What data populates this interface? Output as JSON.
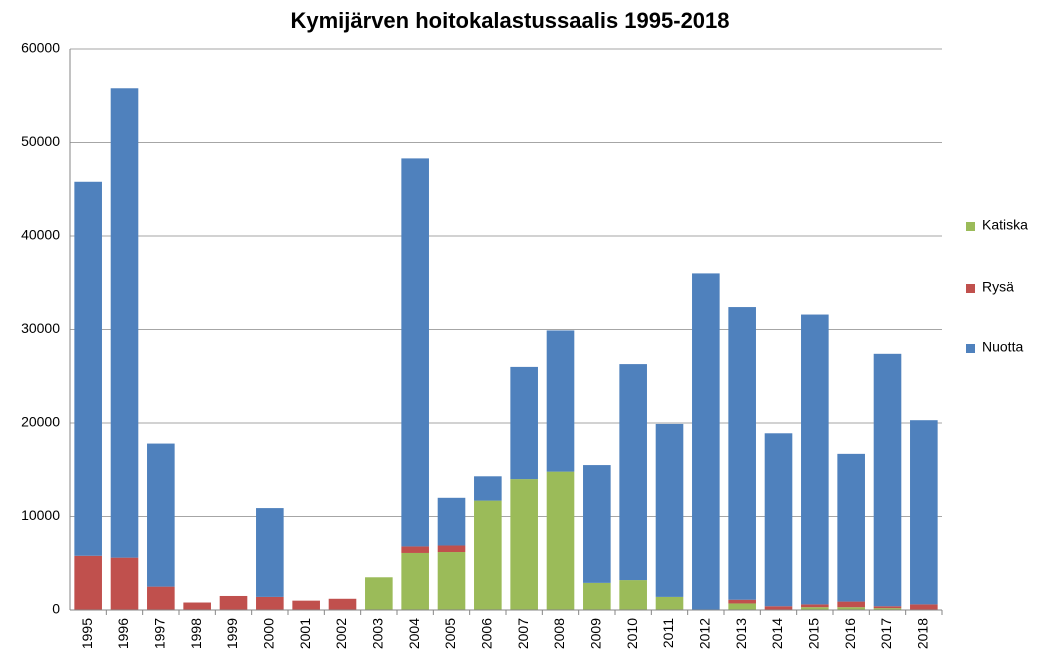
{
  "chart_data": {
    "type": "stacked_bar",
    "title": "Kymijärven hoitokalastussaalis 1995-2018",
    "categories": [
      "1995",
      "1996",
      "1997",
      "1998",
      "1999",
      "2000",
      "2001",
      "2002",
      "2003",
      "2004",
      "2005",
      "2006",
      "2007",
      "2008",
      "2009",
      "2010",
      "2011",
      "2012",
      "2013",
      "2014",
      "2015",
      "2016",
      "2017",
      "2018"
    ],
    "series": [
      {
        "name": "Katiska",
        "color": "#9bbb59",
        "values": [
          0,
          0,
          0,
          0,
          0,
          0,
          0,
          0,
          3500,
          6100,
          6200,
          11700,
          14000,
          14800,
          2900,
          3200,
          1400,
          0,
          700,
          0,
          300,
          300,
          200,
          0
        ]
      },
      {
        "name": "Rysä",
        "color": "#c0504d",
        "values": [
          5800,
          5600,
          2500,
          800,
          1500,
          1400,
          1000,
          1200,
          0,
          700,
          700,
          0,
          0,
          0,
          0,
          0,
          0,
          0,
          400,
          400,
          300,
          600,
          200,
          600
        ]
      },
      {
        "name": "Nuotta",
        "color": "#4f81bd",
        "values": [
          40000,
          50200,
          15300,
          0,
          0,
          9500,
          0,
          0,
          0,
          41500,
          5100,
          2600,
          12000,
          15100,
          12600,
          23100,
          18500,
          36000,
          31300,
          18500,
          31000,
          15800,
          27000,
          19700
        ]
      }
    ],
    "ylim": [
      0,
      60000
    ],
    "yticks": [
      0,
      10000,
      20000,
      30000,
      40000,
      50000,
      60000
    ],
    "grid": true,
    "legend": "right"
  }
}
